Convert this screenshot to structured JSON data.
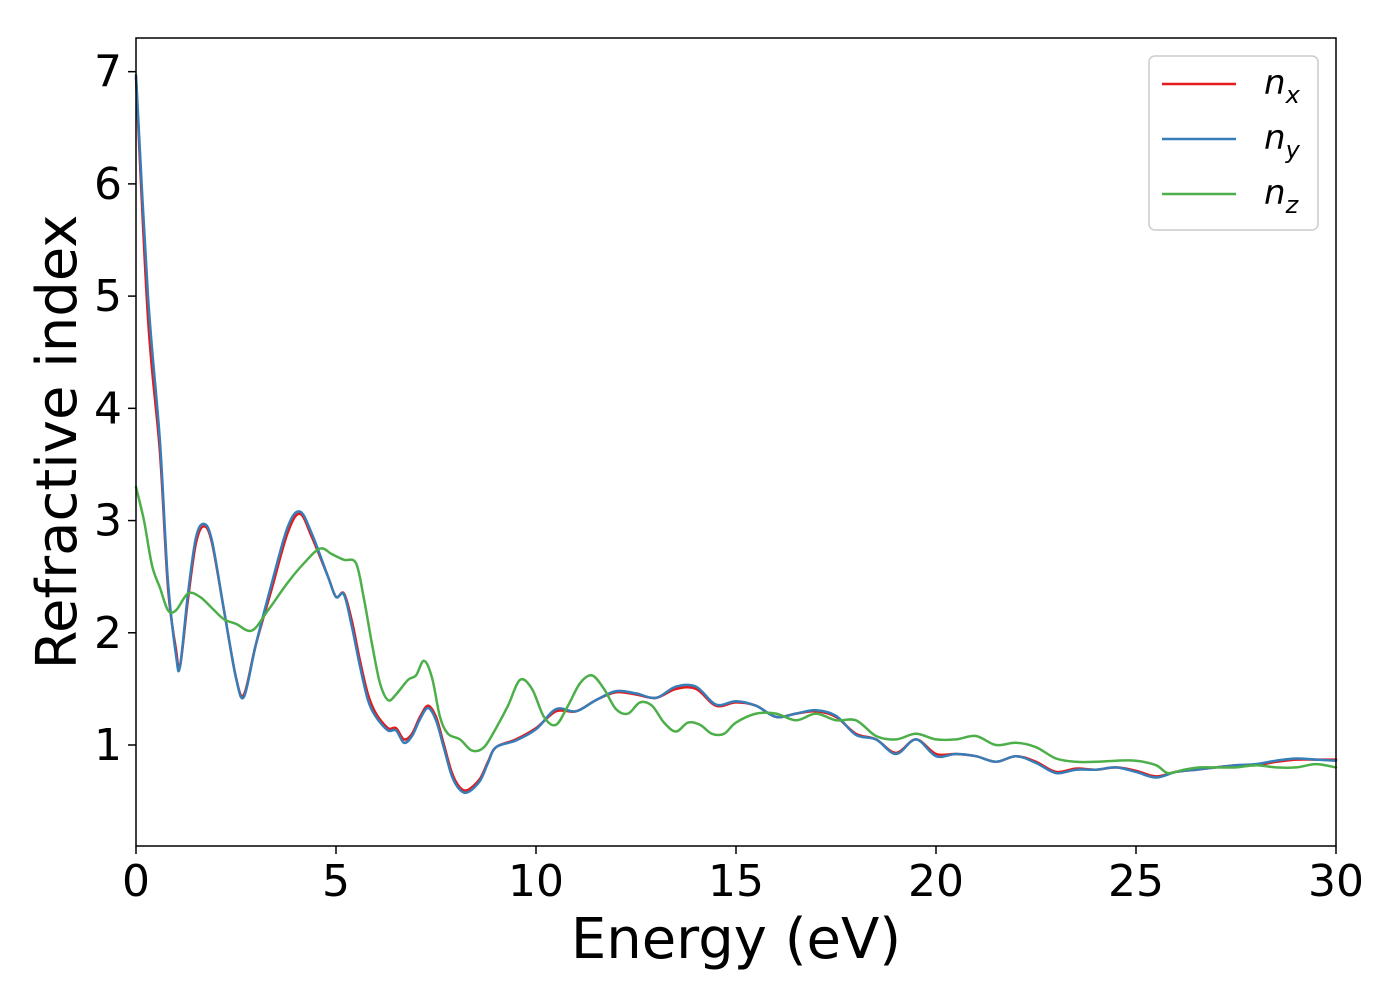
{
  "chart_data": {
    "type": "line",
    "title": "",
    "xlabel": "Energy (eV)",
    "ylabel": "Refractive index",
    "xlim": [
      0,
      30
    ],
    "ylim": [
      0.1,
      7.3
    ],
    "xticks": [
      0,
      5,
      10,
      15,
      20,
      25,
      30
    ],
    "yticks": [
      1,
      2,
      3,
      4,
      5,
      6,
      7
    ],
    "grid": false,
    "legend_position": "top-right",
    "series": [
      {
        "name": "n_x",
        "legend_main": "n",
        "legend_sub": "x",
        "color": "#e41a1c",
        "x": [
          0,
          0.3,
          0.6,
          0.8,
          1.0,
          1.1,
          1.3,
          1.5,
          1.7,
          1.9,
          2.2,
          2.5,
          2.7,
          3.0,
          3.4,
          3.8,
          4.1,
          4.4,
          4.8,
          5.0,
          5.2,
          5.4,
          5.6,
          5.8,
          6.0,
          6.3,
          6.5,
          6.7,
          6.9,
          7.1,
          7.3,
          7.5,
          7.7,
          7.9,
          8.1,
          8.3,
          8.6,
          8.8,
          9.0,
          9.5,
          10.0,
          10.5,
          11.0,
          11.5,
          12.0,
          12.5,
          13.0,
          13.5,
          14.0,
          14.5,
          15.0,
          15.5,
          16.0,
          16.5,
          17.0,
          17.5,
          18.0,
          18.5,
          19.0,
          19.5,
          20.0,
          20.5,
          21.0,
          21.5,
          22.0,
          22.5,
          23.0,
          23.5,
          24.0,
          24.5,
          25.0,
          25.5,
          26.0,
          26.5,
          27.0,
          27.5,
          28.0,
          28.5,
          29.0,
          29.5,
          30.0
        ],
        "y": [
          6.95,
          4.8,
          3.6,
          2.4,
          1.85,
          1.7,
          2.3,
          2.8,
          2.95,
          2.8,
          2.2,
          1.6,
          1.45,
          1.9,
          2.4,
          2.9,
          3.06,
          2.85,
          2.5,
          2.32,
          2.35,
          2.1,
          1.75,
          1.45,
          1.28,
          1.15,
          1.15,
          1.05,
          1.1,
          1.25,
          1.35,
          1.25,
          1.0,
          0.75,
          0.62,
          0.6,
          0.7,
          0.85,
          0.98,
          1.05,
          1.15,
          1.3,
          1.3,
          1.4,
          1.47,
          1.45,
          1.42,
          1.5,
          1.5,
          1.35,
          1.38,
          1.35,
          1.25,
          1.28,
          1.3,
          1.25,
          1.1,
          1.05,
          0.93,
          1.05,
          0.92,
          0.92,
          0.9,
          0.85,
          0.9,
          0.85,
          0.76,
          0.79,
          0.78,
          0.8,
          0.77,
          0.72,
          0.76,
          0.78,
          0.8,
          0.82,
          0.82,
          0.85,
          0.87,
          0.87,
          0.87
        ]
      },
      {
        "name": "n_y",
        "legend_main": "n",
        "legend_sub": "y",
        "color": "#377eb8",
        "x": [
          0,
          0.3,
          0.6,
          0.8,
          1.0,
          1.1,
          1.3,
          1.5,
          1.7,
          1.9,
          2.2,
          2.5,
          2.7,
          3.0,
          3.4,
          3.8,
          4.1,
          4.4,
          4.8,
          5.0,
          5.2,
          5.4,
          5.6,
          5.8,
          6.0,
          6.3,
          6.5,
          6.7,
          6.9,
          7.1,
          7.3,
          7.5,
          7.7,
          7.9,
          8.1,
          8.3,
          8.6,
          8.8,
          9.0,
          9.5,
          10.0,
          10.5,
          11.0,
          11.5,
          12.0,
          12.5,
          13.0,
          13.5,
          14.0,
          14.5,
          15.0,
          15.5,
          16.0,
          16.5,
          17.0,
          17.5,
          18.0,
          18.5,
          19.0,
          19.5,
          20.0,
          20.5,
          21.0,
          21.5,
          22.0,
          22.5,
          23.0,
          23.5,
          24.0,
          24.5,
          25.0,
          25.5,
          26.0,
          26.5,
          27.0,
          27.5,
          28.0,
          28.5,
          29.0,
          29.5,
          30.0
        ],
        "y": [
          6.97,
          5.0,
          3.7,
          2.45,
          1.8,
          1.7,
          2.35,
          2.85,
          2.97,
          2.82,
          2.2,
          1.6,
          1.43,
          1.9,
          2.45,
          2.95,
          3.08,
          2.88,
          2.5,
          2.32,
          2.34,
          2.05,
          1.7,
          1.4,
          1.25,
          1.13,
          1.13,
          1.02,
          1.08,
          1.23,
          1.33,
          1.22,
          0.97,
          0.72,
          0.6,
          0.58,
          0.68,
          0.84,
          0.98,
          1.04,
          1.14,
          1.32,
          1.3,
          1.4,
          1.48,
          1.46,
          1.42,
          1.52,
          1.52,
          1.36,
          1.39,
          1.35,
          1.25,
          1.28,
          1.31,
          1.26,
          1.09,
          1.05,
          0.92,
          1.05,
          0.9,
          0.92,
          0.9,
          0.85,
          0.9,
          0.84,
          0.75,
          0.78,
          0.78,
          0.8,
          0.76,
          0.71,
          0.76,
          0.78,
          0.8,
          0.82,
          0.83,
          0.86,
          0.88,
          0.87,
          0.86
        ]
      },
      {
        "name": "n_z",
        "legend_main": "n",
        "legend_sub": "z",
        "color": "#4daf4a",
        "x": [
          0,
          0.2,
          0.4,
          0.6,
          0.8,
          1.0,
          1.3,
          1.6,
          1.9,
          2.2,
          2.5,
          2.9,
          3.3,
          3.8,
          4.2,
          4.6,
          4.9,
          5.2,
          5.5,
          5.7,
          5.9,
          6.1,
          6.3,
          6.5,
          6.8,
          7.0,
          7.2,
          7.4,
          7.6,
          7.8,
          8.1,
          8.4,
          8.7,
          9.0,
          9.3,
          9.6,
          9.9,
          10.2,
          10.5,
          10.8,
          11.1,
          11.4,
          11.7,
          12.0,
          12.3,
          12.6,
          12.9,
          13.2,
          13.5,
          13.8,
          14.1,
          14.4,
          14.7,
          15.0,
          15.5,
          16.0,
          16.5,
          17.0,
          17.5,
          18.0,
          18.5,
          19.0,
          19.5,
          20.0,
          20.5,
          21.0,
          21.5,
          22.0,
          22.5,
          23.0,
          23.5,
          24.0,
          24.5,
          25.0,
          25.5,
          25.8,
          26.2,
          26.6,
          27.0,
          27.5,
          28.0,
          28.5,
          29.0,
          29.5,
          30.0
        ],
        "y": [
          3.3,
          3.0,
          2.6,
          2.4,
          2.2,
          2.2,
          2.35,
          2.32,
          2.22,
          2.12,
          2.08,
          2.02,
          2.2,
          2.45,
          2.62,
          2.75,
          2.7,
          2.65,
          2.62,
          2.3,
          1.9,
          1.55,
          1.4,
          1.45,
          1.58,
          1.62,
          1.75,
          1.6,
          1.25,
          1.1,
          1.05,
          0.95,
          0.98,
          1.15,
          1.35,
          1.58,
          1.5,
          1.25,
          1.18,
          1.35,
          1.55,
          1.62,
          1.5,
          1.32,
          1.28,
          1.38,
          1.35,
          1.2,
          1.12,
          1.2,
          1.18,
          1.1,
          1.1,
          1.2,
          1.28,
          1.28,
          1.22,
          1.28,
          1.22,
          1.22,
          1.08,
          1.05,
          1.1,
          1.05,
          1.05,
          1.08,
          1.0,
          1.02,
          0.98,
          0.88,
          0.85,
          0.85,
          0.86,
          0.86,
          0.82,
          0.75,
          0.78,
          0.8,
          0.8,
          0.8,
          0.82,
          0.8,
          0.8,
          0.83,
          0.8
        ]
      }
    ]
  }
}
